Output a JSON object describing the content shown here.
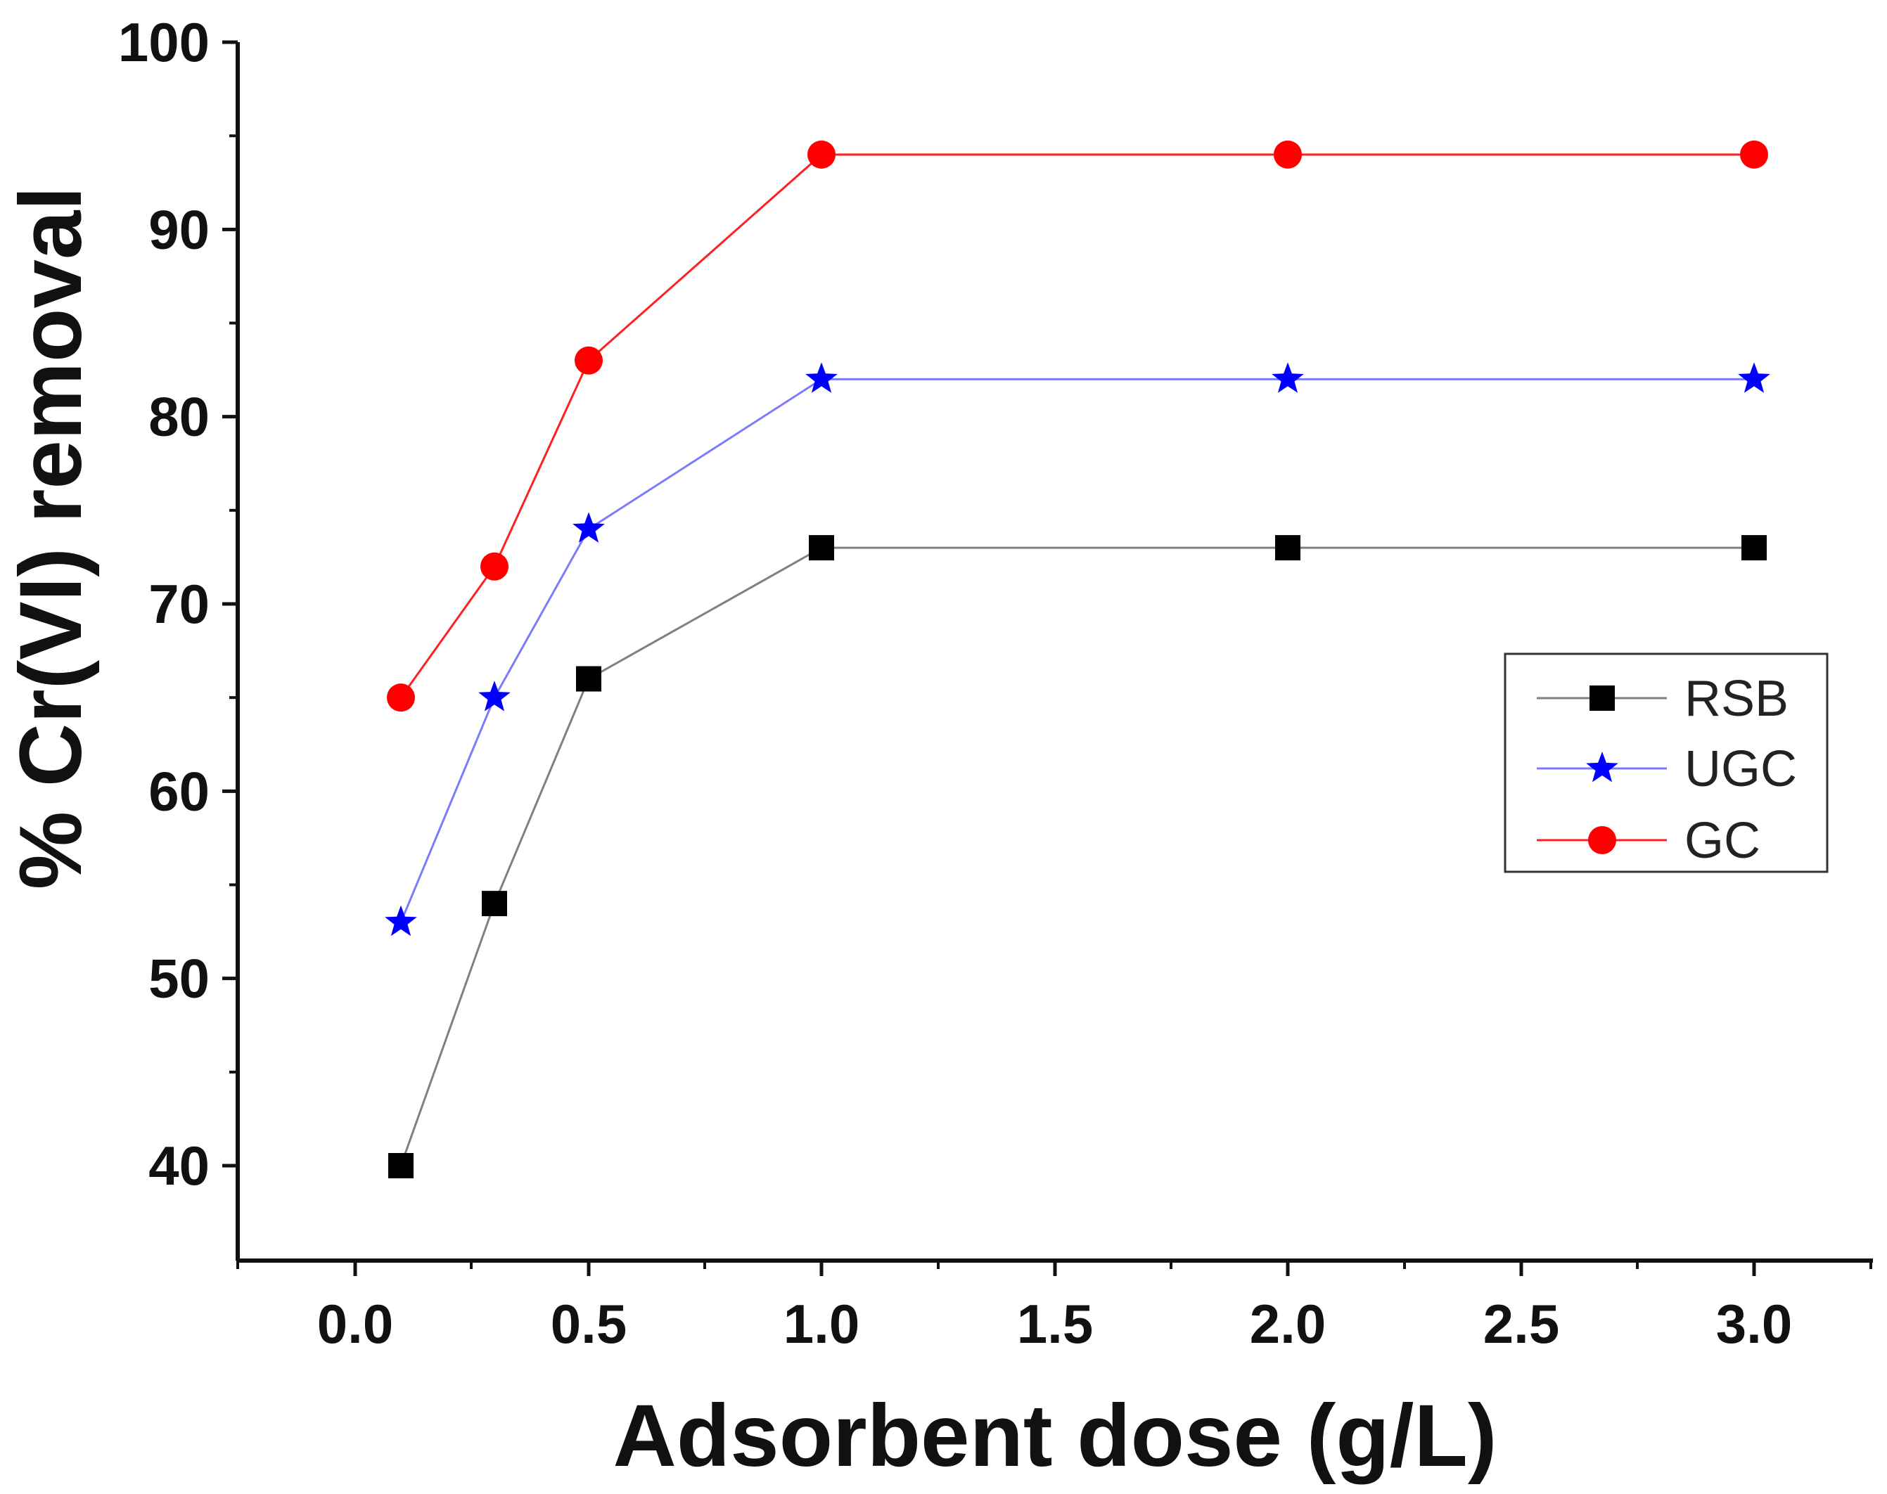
{
  "chart_data": {
    "type": "line",
    "xlabel": "Adsorbent dose (g/L)",
    "ylabel": "% Cr(VI) removal",
    "x_ticks": [
      "0.0",
      "0.5",
      "1.0",
      "1.5",
      "2.0",
      "2.5",
      "3.0"
    ],
    "y_ticks": [
      "40",
      "50",
      "60",
      "70",
      "80",
      "90",
      "100"
    ],
    "ylim": [
      35,
      100
    ],
    "legend_position": "right",
    "grid": false,
    "series": [
      {
        "name": "RSB",
        "color": "#000000",
        "line_color": "#808080",
        "marker": "square",
        "points": [
          {
            "x_label": "0.1",
            "y": 40
          },
          {
            "x_label": "0.3",
            "y": 54
          },
          {
            "x_label": "0.5",
            "y": 66
          },
          {
            "x_label": "1.0",
            "y": 73
          },
          {
            "x_label": "2.0",
            "y": 73
          },
          {
            "x_label": "3.0",
            "y": 73
          }
        ]
      },
      {
        "name": "UGC",
        "color": "#0000ff",
        "line_color": "#7b7bff",
        "marker": "star",
        "points": [
          {
            "x_label": "0.1",
            "y": 53
          },
          {
            "x_label": "0.3",
            "y": 65
          },
          {
            "x_label": "0.5",
            "y": 74
          },
          {
            "x_label": "1.0",
            "y": 82
          },
          {
            "x_label": "2.0",
            "y": 82
          },
          {
            "x_label": "3.0",
            "y": 82
          }
        ]
      },
      {
        "name": "GC",
        "color": "#ff0000",
        "line_color": "#ff2020",
        "marker": "circle",
        "points": [
          {
            "x_label": "0.1",
            "y": 65
          },
          {
            "x_label": "0.3",
            "y": 72
          },
          {
            "x_label": "0.5",
            "y": 83
          },
          {
            "x_label": "1.0",
            "y": 94
          },
          {
            "x_label": "2.0",
            "y": 94
          },
          {
            "x_label": "3.0",
            "y": 94
          }
        ]
      }
    ]
  }
}
